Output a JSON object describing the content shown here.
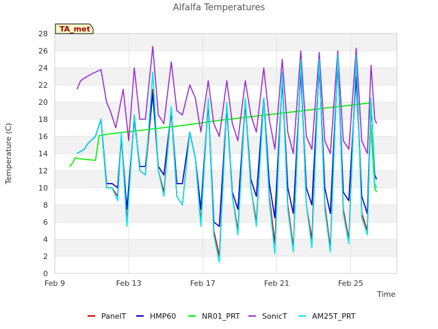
{
  "chart_data": {
    "type": "line",
    "title": "Alfalfa Temperatures",
    "xlabel": "Time",
    "ylabel": "Temperature (C)",
    "badge": "TA_met",
    "ylim": [
      0,
      28
    ],
    "yticks": [
      0,
      2,
      4,
      6,
      8,
      10,
      12,
      14,
      16,
      18,
      20,
      22,
      24,
      26,
      28
    ],
    "xlim": [
      9,
      27.5
    ],
    "xticks": [
      {
        "value": 9,
        "label": "Feb 9"
      },
      {
        "value": 13,
        "label": "Feb 13"
      },
      {
        "value": 17,
        "label": "Feb 17"
      },
      {
        "value": 21,
        "label": "Feb 21"
      },
      {
        "value": 25,
        "label": "Feb 25"
      }
    ],
    "grid": true,
    "legend_position": "bottom",
    "series": [
      {
        "name": "PanelT",
        "color": "#cc0000",
        "x": [
          10.2,
          10.6,
          10.8,
          11.2,
          11.5,
          11.8,
          12.1,
          12.4,
          12.6,
          12.9,
          13.3,
          13.6,
          13.9,
          14.3,
          14.6,
          14.9,
          15.3,
          15.6,
          15.9,
          16.3,
          16.6,
          16.9,
          17.3,
          17.6,
          17.9,
          18.3,
          18.6,
          18.9,
          19.3,
          19.6,
          19.9,
          20.3,
          20.6,
          20.9,
          21.3,
          21.6,
          21.9,
          22.3,
          22.6,
          22.9,
          23.3,
          23.6,
          23.9,
          24.3,
          24.6,
          24.9,
          25.3,
          25.6,
          25.9,
          26.1
        ],
        "y": [
          14.0,
          14.5,
          15.2,
          16.0,
          18.0,
          10.0,
          10.0,
          9.0,
          16.0,
          6.0,
          18.5,
          12.0,
          11.5,
          21.5,
          12.0,
          9.5,
          19.0,
          9.0,
          8.0,
          16.5,
          13.5,
          6.0,
          20.0,
          5.0,
          2.0,
          19.5,
          9.0,
          5.0,
          20.0,
          10.0,
          6.0,
          20.5,
          9.0,
          3.5,
          23.0,
          8.0,
          3.0,
          24.5,
          8.0,
          4.0,
          25.0,
          8.0,
          3.0,
          25.5,
          7.5,
          4.0,
          25.5,
          7.0,
          5.0,
          20.0
        ]
      },
      {
        "name": "HMP60",
        "color": "#0000cc",
        "x": [
          10.2,
          10.6,
          10.8,
          11.2,
          11.5,
          11.8,
          12.1,
          12.4,
          12.6,
          12.9,
          13.3,
          13.6,
          13.9,
          14.3,
          14.6,
          14.9,
          15.3,
          15.6,
          15.9,
          16.3,
          16.6,
          16.9,
          17.3,
          17.6,
          17.9,
          18.3,
          18.6,
          18.9,
          19.3,
          19.6,
          19.9,
          20.3,
          20.6,
          20.9,
          21.3,
          21.6,
          21.9,
          22.3,
          22.6,
          22.9,
          23.3,
          23.6,
          23.9,
          24.3,
          24.6,
          24.9,
          25.3,
          25.6,
          25.9,
          26.1,
          26.3,
          26.4
        ],
        "y": [
          14.0,
          14.5,
          15.2,
          16.0,
          18.0,
          10.5,
          10.5,
          10.0,
          16.0,
          7.5,
          18.0,
          12.5,
          12.5,
          21.0,
          12.5,
          11.5,
          19.0,
          10.5,
          10.5,
          16.5,
          13.5,
          7.5,
          20.0,
          6.0,
          5.5,
          19.5,
          9.5,
          7.5,
          20.0,
          11.0,
          9.0,
          20.5,
          10.5,
          6.5,
          22.5,
          10.0,
          7.0,
          23.5,
          10.0,
          8.0,
          24.0,
          10.0,
          7.0,
          24.5,
          9.5,
          8.5,
          23.0,
          9.0,
          7.0,
          20.0,
          11.5,
          11.0
        ]
      },
      {
        "name": "NR01_PRT",
        "color": "#00ee00",
        "x": [
          9.8,
          10.0,
          10.1,
          10.3,
          11.2,
          11.4,
          12.0,
          14.0,
          16.0,
          18.0,
          20.0,
          22.0,
          24.0,
          26.0,
          26.3,
          26.4
        ],
        "y": [
          12.5,
          13.0,
          13.5,
          13.4,
          13.2,
          16.1,
          16.3,
          16.8,
          17.3,
          17.9,
          18.4,
          18.9,
          19.4,
          19.9,
          10.0,
          9.5
        ]
      },
      {
        "name": "SonicT",
        "color": "#9932cc",
        "x": [
          10.2,
          10.4,
          10.6,
          11.0,
          11.5,
          11.8,
          12.0,
          12.3,
          12.7,
          13.0,
          13.3,
          13.6,
          13.9,
          14.3,
          14.6,
          14.9,
          15.3,
          15.6,
          15.9,
          16.3,
          16.6,
          16.9,
          17.3,
          17.6,
          17.9,
          18.3,
          18.6,
          18.9,
          19.3,
          19.6,
          19.9,
          20.3,
          20.6,
          20.9,
          21.3,
          21.6,
          21.9,
          22.3,
          22.6,
          22.9,
          23.3,
          23.6,
          23.9,
          24.3,
          24.6,
          24.9,
          25.3,
          25.6,
          25.9,
          26.1,
          26.3,
          26.4
        ],
        "y": [
          21.5,
          22.5,
          22.8,
          23.3,
          23.8,
          20.0,
          19.0,
          17.0,
          21.5,
          15.5,
          24.0,
          18.0,
          18.0,
          26.5,
          18.5,
          17.5,
          24.7,
          19.0,
          18.5,
          22.0,
          20.5,
          16.5,
          22.5,
          17.5,
          16.0,
          22.5,
          17.5,
          15.5,
          22.5,
          18.5,
          16.5,
          24.0,
          18.0,
          14.5,
          25.0,
          16.5,
          14.0,
          26.0,
          16.0,
          14.5,
          25.8,
          15.5,
          14.0,
          26.0,
          15.5,
          14.5,
          26.3,
          15.5,
          14.0,
          24.3,
          18.0,
          17.5
        ]
      },
      {
        "name": "AM25T_PRT",
        "color": "#00e5ee",
        "x": [
          10.2,
          10.6,
          10.8,
          11.2,
          11.5,
          11.8,
          12.1,
          12.4,
          12.6,
          12.9,
          13.3,
          13.6,
          13.9,
          14.3,
          14.6,
          14.9,
          15.3,
          15.6,
          15.9,
          16.3,
          16.6,
          16.9,
          17.3,
          17.6,
          17.9,
          18.3,
          18.6,
          18.9,
          19.3,
          19.6,
          19.9,
          20.3,
          20.6,
          20.9,
          21.3,
          21.6,
          21.9,
          22.3,
          22.6,
          22.9,
          23.3,
          23.6,
          23.9,
          24.3,
          24.6,
          24.9,
          25.3,
          25.6,
          25.9,
          26.1,
          26.3,
          26.4
        ],
        "y": [
          14.0,
          14.5,
          15.2,
          16.0,
          18.0,
          10.0,
          10.0,
          8.5,
          16.5,
          5.5,
          18.5,
          12.0,
          11.5,
          23.5,
          12.0,
          9.0,
          19.5,
          9.0,
          8.0,
          16.5,
          13.5,
          5.5,
          20.5,
          4.5,
          1.3,
          20.0,
          9.0,
          4.5,
          20.5,
          10.0,
          5.5,
          20.5,
          8.5,
          2.3,
          23.5,
          7.5,
          2.5,
          25.0,
          8.0,
          3.0,
          25.0,
          7.5,
          2.5,
          25.5,
          7.0,
          3.5,
          25.5,
          6.5,
          4.5,
          20.5,
          10.5,
          10.0
        ]
      }
    ]
  }
}
